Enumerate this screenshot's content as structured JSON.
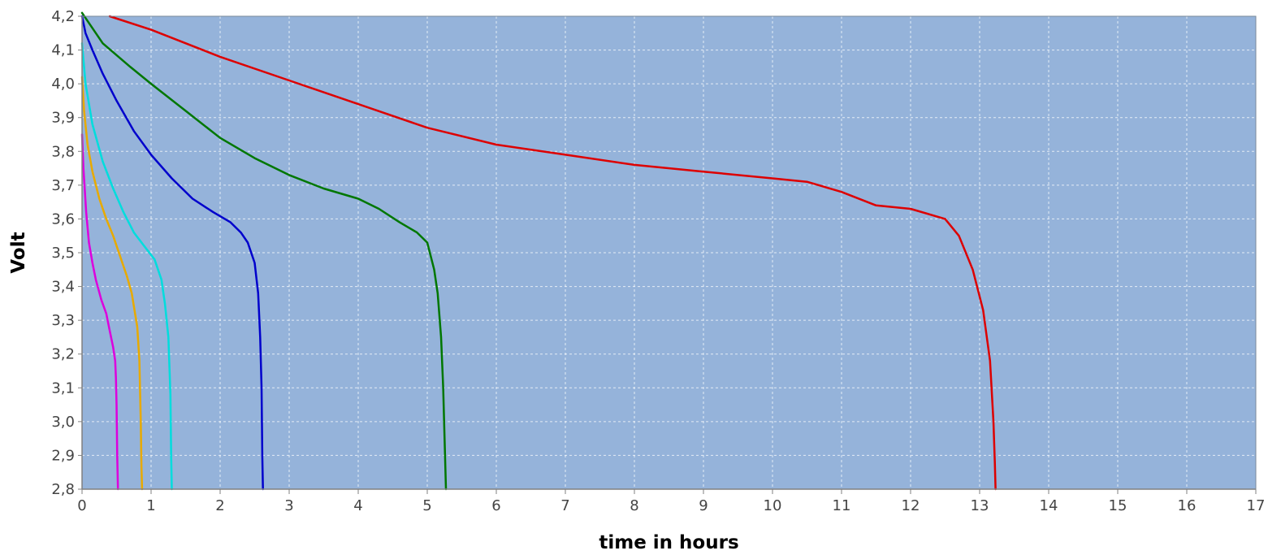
{
  "chart_data": {
    "type": "line",
    "title": "",
    "xlabel": "time in hours",
    "ylabel": "Volt",
    "xlim": [
      0,
      17
    ],
    "ylim": [
      2.8,
      4.2
    ],
    "x_ticks": [
      0,
      1,
      2,
      3,
      4,
      5,
      6,
      7,
      8,
      9,
      10,
      11,
      12,
      13,
      14,
      15,
      16,
      17
    ],
    "x_tick_labels": [
      "0",
      "1",
      "2",
      "3",
      "4",
      "5",
      "6",
      "7",
      "8",
      "9",
      "10",
      "11",
      "12",
      "13",
      "14",
      "15",
      "16",
      "17"
    ],
    "y_ticks": [
      2.8,
      2.9,
      3.0,
      3.1,
      3.2,
      3.3,
      3.4,
      3.5,
      3.6,
      3.7,
      3.8,
      3.9,
      4.0,
      4.1,
      4.2
    ],
    "y_tick_labels": [
      "2,8",
      "2,9",
      "3,0",
      "3,1",
      "3,2",
      "3,3",
      "3,4",
      "3,5",
      "3,6",
      "3,7",
      "3,8",
      "3,9",
      "4,0",
      "4,1",
      "4,2"
    ],
    "grid": true,
    "legend": "none",
    "plot_background": "#95b3da",
    "series": [
      {
        "color": "#dd00dd",
        "x": [
          0.0,
          0.02,
          0.06,
          0.1,
          0.15,
          0.2,
          0.28,
          0.35,
          0.4,
          0.45,
          0.48,
          0.49,
          0.5,
          0.51,
          0.52
        ],
        "y": [
          3.85,
          3.75,
          3.62,
          3.53,
          3.47,
          3.42,
          3.36,
          3.32,
          3.27,
          3.22,
          3.18,
          3.13,
          3.05,
          2.9,
          2.8
        ]
      },
      {
        "color": "#e8aa00",
        "x": [
          0.0,
          0.03,
          0.08,
          0.15,
          0.25,
          0.35,
          0.45,
          0.55,
          0.65,
          0.72,
          0.8,
          0.83,
          0.85,
          0.86,
          0.87
        ],
        "y": [
          4.02,
          3.92,
          3.82,
          3.74,
          3.66,
          3.6,
          3.55,
          3.49,
          3.43,
          3.38,
          3.28,
          3.18,
          3.0,
          2.87,
          2.8
        ]
      },
      {
        "color": "#00dddd",
        "x": [
          0.0,
          0.05,
          0.15,
          0.3,
          0.45,
          0.6,
          0.75,
          0.9,
          1.05,
          1.15,
          1.2,
          1.25,
          1.28,
          1.29,
          1.3
        ],
        "y": [
          4.12,
          4.0,
          3.88,
          3.77,
          3.69,
          3.62,
          3.56,
          3.52,
          3.48,
          3.42,
          3.35,
          3.25,
          3.08,
          2.9,
          2.8
        ]
      },
      {
        "color": "#0000cc",
        "x": [
          0.0,
          0.05,
          0.15,
          0.3,
          0.5,
          0.75,
          1.0,
          1.3,
          1.6,
          1.9,
          2.15,
          2.3,
          2.4,
          2.5,
          2.55,
          2.58,
          2.6,
          2.61,
          2.62
        ],
        "y": [
          4.2,
          4.15,
          4.1,
          4.03,
          3.95,
          3.86,
          3.79,
          3.72,
          3.66,
          3.62,
          3.59,
          3.56,
          3.53,
          3.47,
          3.38,
          3.25,
          3.1,
          2.9,
          2.8
        ]
      },
      {
        "color": "#007700",
        "x": [
          0.0,
          0.3,
          0.7,
          1.0,
          1.5,
          2.0,
          2.5,
          3.0,
          3.5,
          4.0,
          4.3,
          4.6,
          4.85,
          5.0,
          5.1,
          5.15,
          5.2,
          5.23,
          5.25,
          5.27
        ],
        "y": [
          4.21,
          4.12,
          4.05,
          4.0,
          3.92,
          3.84,
          3.78,
          3.73,
          3.69,
          3.66,
          3.63,
          3.59,
          3.56,
          3.53,
          3.45,
          3.38,
          3.25,
          3.1,
          2.95,
          2.8
        ]
      },
      {
        "color": "#dd0000",
        "x": [
          0.4,
          1.0,
          2.0,
          3.0,
          4.0,
          5.0,
          6.0,
          7.0,
          8.0,
          9.0,
          10.0,
          10.5,
          11.0,
          11.5,
          12.0,
          12.5,
          12.7,
          12.9,
          13.05,
          13.15,
          13.2,
          13.22,
          13.23
        ],
        "y": [
          4.2,
          4.16,
          4.08,
          4.01,
          3.94,
          3.87,
          3.82,
          3.79,
          3.76,
          3.74,
          3.72,
          3.71,
          3.68,
          3.64,
          3.63,
          3.6,
          3.55,
          3.45,
          3.33,
          3.18,
          3.0,
          2.88,
          2.8
        ]
      }
    ]
  }
}
